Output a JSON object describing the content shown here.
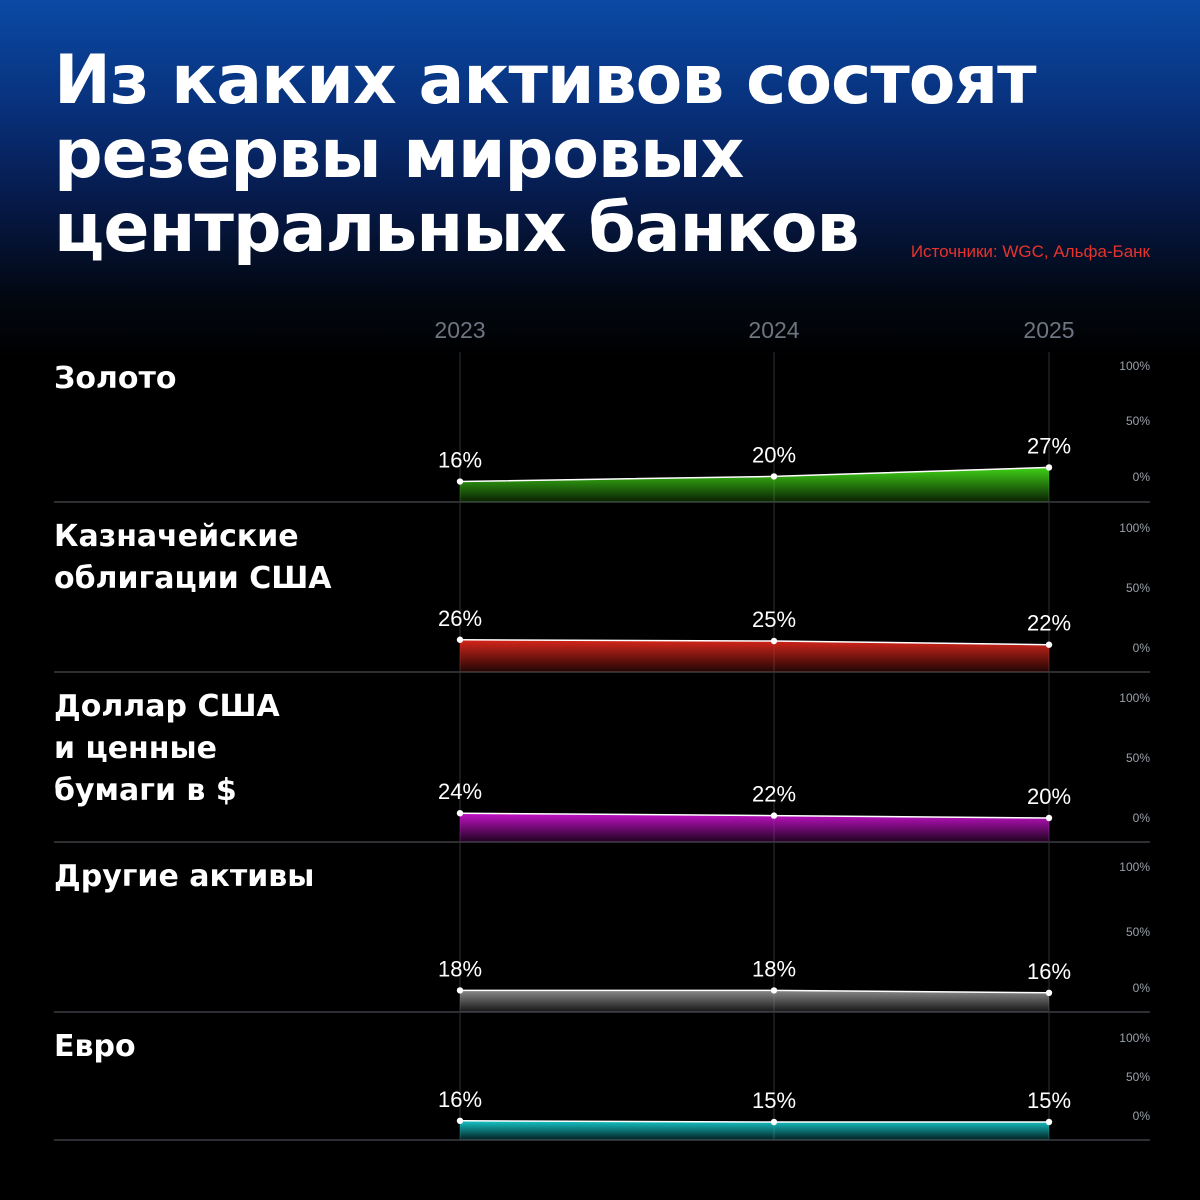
{
  "title_lines": [
    "Из каких активов состоят",
    "резервы мировых",
    "центральных банков"
  ],
  "source": "Источники: WGC, Альфа-Банк",
  "chart_data": {
    "type": "area",
    "x": [
      "2023",
      "2024",
      "2025"
    ],
    "ylim": [
      0,
      100
    ],
    "y_ticks": [
      "100%",
      "50%",
      "0%"
    ],
    "grid": true,
    "series": [
      {
        "name": "Золото",
        "label_lines": [
          "Золото"
        ],
        "values": [
          16,
          20,
          27
        ],
        "labels": [
          "16%",
          "20%",
          "27%"
        ],
        "color": "#3fd116"
      },
      {
        "name": "Казначейские облигации США",
        "label_lines": [
          "Казначейские",
          "облигации США"
        ],
        "values": [
          26,
          25,
          22
        ],
        "labels": [
          "26%",
          "25%",
          "22%"
        ],
        "color": "#d7261b"
      },
      {
        "name": "Доллар США и ценные бумаги в $",
        "label_lines": [
          "Доллар США",
          "и ценные",
          "бумаги в $"
        ],
        "values": [
          24,
          22,
          20
        ],
        "labels": [
          "24%",
          "22%",
          "20%"
        ],
        "color": "#c412c8"
      },
      {
        "name": "Другие активы",
        "label_lines": [
          "Другие активы"
        ],
        "values": [
          18,
          18,
          16
        ],
        "labels": [
          "18%",
          "18%",
          "16%"
        ],
        "color": "#8a8a8a"
      },
      {
        "name": "Евро",
        "label_lines": [
          "Евро"
        ],
        "values": [
          16,
          15,
          15
        ],
        "labels": [
          "16%",
          "15%",
          "15%"
        ],
        "color": "#16c6c8"
      }
    ]
  }
}
